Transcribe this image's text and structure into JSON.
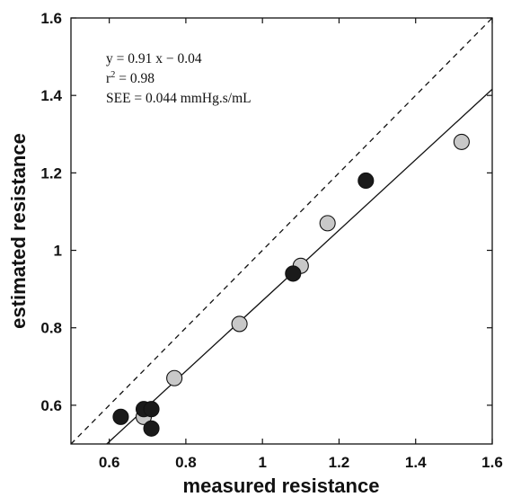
{
  "chart_data": {
    "type": "scatter",
    "xlabel": "measured resistance",
    "ylabel": "estimated resistance",
    "xlim": [
      0.5,
      1.6
    ],
    "ylim": [
      0.5,
      1.6
    ],
    "xticks": [
      {
        "value": 0.6,
        "label": "0.6"
      },
      {
        "value": 0.8,
        "label": "0.8"
      },
      {
        "value": 1.0,
        "label": "1"
      },
      {
        "value": 1.2,
        "label": "1.2"
      },
      {
        "value": 1.4,
        "label": "1.4"
      },
      {
        "value": 1.6,
        "label": "1.6"
      }
    ],
    "yticks": [
      {
        "value": 0.6,
        "label": "0.6"
      },
      {
        "value": 0.8,
        "label": "0.8"
      },
      {
        "value": 1.0,
        "label": "1"
      },
      {
        "value": 1.2,
        "label": "1.2"
      },
      {
        "value": 1.4,
        "label": "1.4"
      },
      {
        "value": 1.6,
        "label": "1.6"
      }
    ],
    "grid": false,
    "series": [
      {
        "color": "#c8c8c8",
        "points": [
          {
            "x": 0.69,
            "y": 0.57
          },
          {
            "x": 0.77,
            "y": 0.67
          },
          {
            "x": 0.94,
            "y": 0.81
          },
          {
            "x": 1.1,
            "y": 0.96
          },
          {
            "x": 1.17,
            "y": 1.07
          },
          {
            "x": 1.52,
            "y": 1.28
          }
        ]
      },
      {
        "color": "#1a1a1a",
        "points": [
          {
            "x": 0.63,
            "y": 0.57
          },
          {
            "x": 0.69,
            "y": 0.59
          },
          {
            "x": 0.71,
            "y": 0.59
          },
          {
            "x": 0.71,
            "y": 0.54
          },
          {
            "x": 1.08,
            "y": 0.94
          },
          {
            "x": 1.27,
            "y": 1.18
          }
        ]
      }
    ],
    "lines": [
      {
        "kind": "identity",
        "style": "dashed",
        "slope": 1,
        "intercept": 0
      },
      {
        "kind": "regression",
        "style": "solid",
        "slope": 0.91,
        "intercept": -0.04
      }
    ],
    "annotation": {
      "equation": "y = 0.91 x − 0.04",
      "r2_prefix": "r",
      "r2_sup": "2",
      "r2_value": " = 0.98",
      "see": "SEE = 0.044 mmHg.s/mL"
    }
  }
}
